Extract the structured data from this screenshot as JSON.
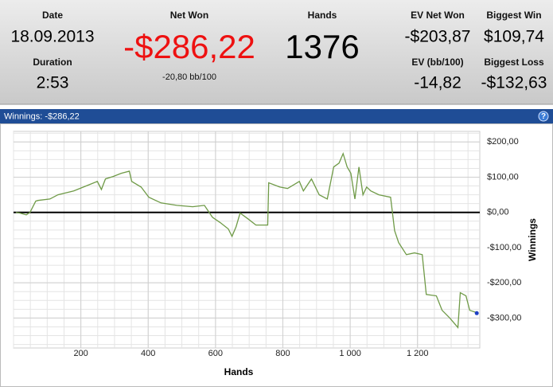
{
  "header": {
    "date_label": "Date",
    "date": "18.09.2013",
    "duration_label": "Duration",
    "duration": "2:53",
    "net_won_label": "Net Won",
    "net_won": "-$286,22",
    "net_won_rate": "-20,80 bb/100",
    "hands_label": "Hands",
    "hands": "1376",
    "ev_net_won_label": "EV Net Won",
    "ev_net_won": "-$203,87",
    "biggest_win_label": "Biggest Win",
    "biggest_win": "$109,74",
    "ev_rate_label": "EV (bb/100)",
    "ev_rate": "-14,82",
    "biggest_loss_label": "Biggest Loss",
    "biggest_loss": "-$132,63"
  },
  "panel": {
    "title": "Winnings: -$286,22",
    "help": "?"
  },
  "chart_data": {
    "type": "line",
    "x_label": "Hands",
    "y_label": "Winnings",
    "color": "#6f9a47",
    "end_marker_color": "#1d3fc4",
    "grid": true,
    "x": [
      7,
      19,
      38,
      49,
      66,
      73,
      108,
      132,
      179,
      226,
      249,
      261,
      273,
      296,
      320,
      344,
      351,
      379,
      402,
      438,
      485,
      532,
      567,
      591,
      614,
      638,
      649,
      661,
      673,
      696,
      720,
      755,
      758,
      791,
      814,
      849,
      861,
      885,
      908,
      932,
      951,
      967,
      979,
      991,
      1002,
      1014,
      1026,
      1038,
      1049,
      1061,
      1085,
      1120,
      1132,
      1144,
      1167,
      1191,
      1214,
      1226,
      1256,
      1273,
      1296,
      1320,
      1327,
      1344,
      1355,
      1374,
      1376
    ],
    "values": [
      0,
      -2,
      -7,
      0,
      32,
      34,
      38,
      50,
      61,
      79,
      88,
      65,
      95,
      102,
      111,
      117,
      88,
      72,
      43,
      27,
      20,
      16,
      20,
      -14,
      -29,
      -47,
      -68,
      -41,
      -2,
      -18,
      -36,
      -36,
      84,
      72,
      68,
      88,
      61,
      95,
      50,
      38,
      129,
      140,
      167,
      129,
      111,
      38,
      129,
      50,
      72,
      61,
      50,
      43,
      -52,
      -86,
      -120,
      -115,
      -120,
      -233,
      -237,
      -278,
      -300,
      -327,
      -228,
      -237,
      -278,
      -284,
      -286.22
    ],
    "xlim": [
      0,
      1385
    ],
    "ylim": [
      -385,
      230
    ],
    "xticks": [
      200,
      400,
      600,
      800,
      {
        "value": 1000,
        "label": "1 000"
      },
      {
        "value": 1200,
        "label": "1 200"
      }
    ],
    "yticks": [
      {
        "value": 200,
        "label": "$200,00"
      },
      {
        "value": 100,
        "label": "$100,00"
      },
      {
        "value": 0,
        "label": "$0,00"
      },
      {
        "value": -100,
        "label": "-$100,00"
      },
      {
        "value": -200,
        "label": "-$200,00"
      },
      {
        "value": -300,
        "label": "-$300,00"
      }
    ]
  }
}
